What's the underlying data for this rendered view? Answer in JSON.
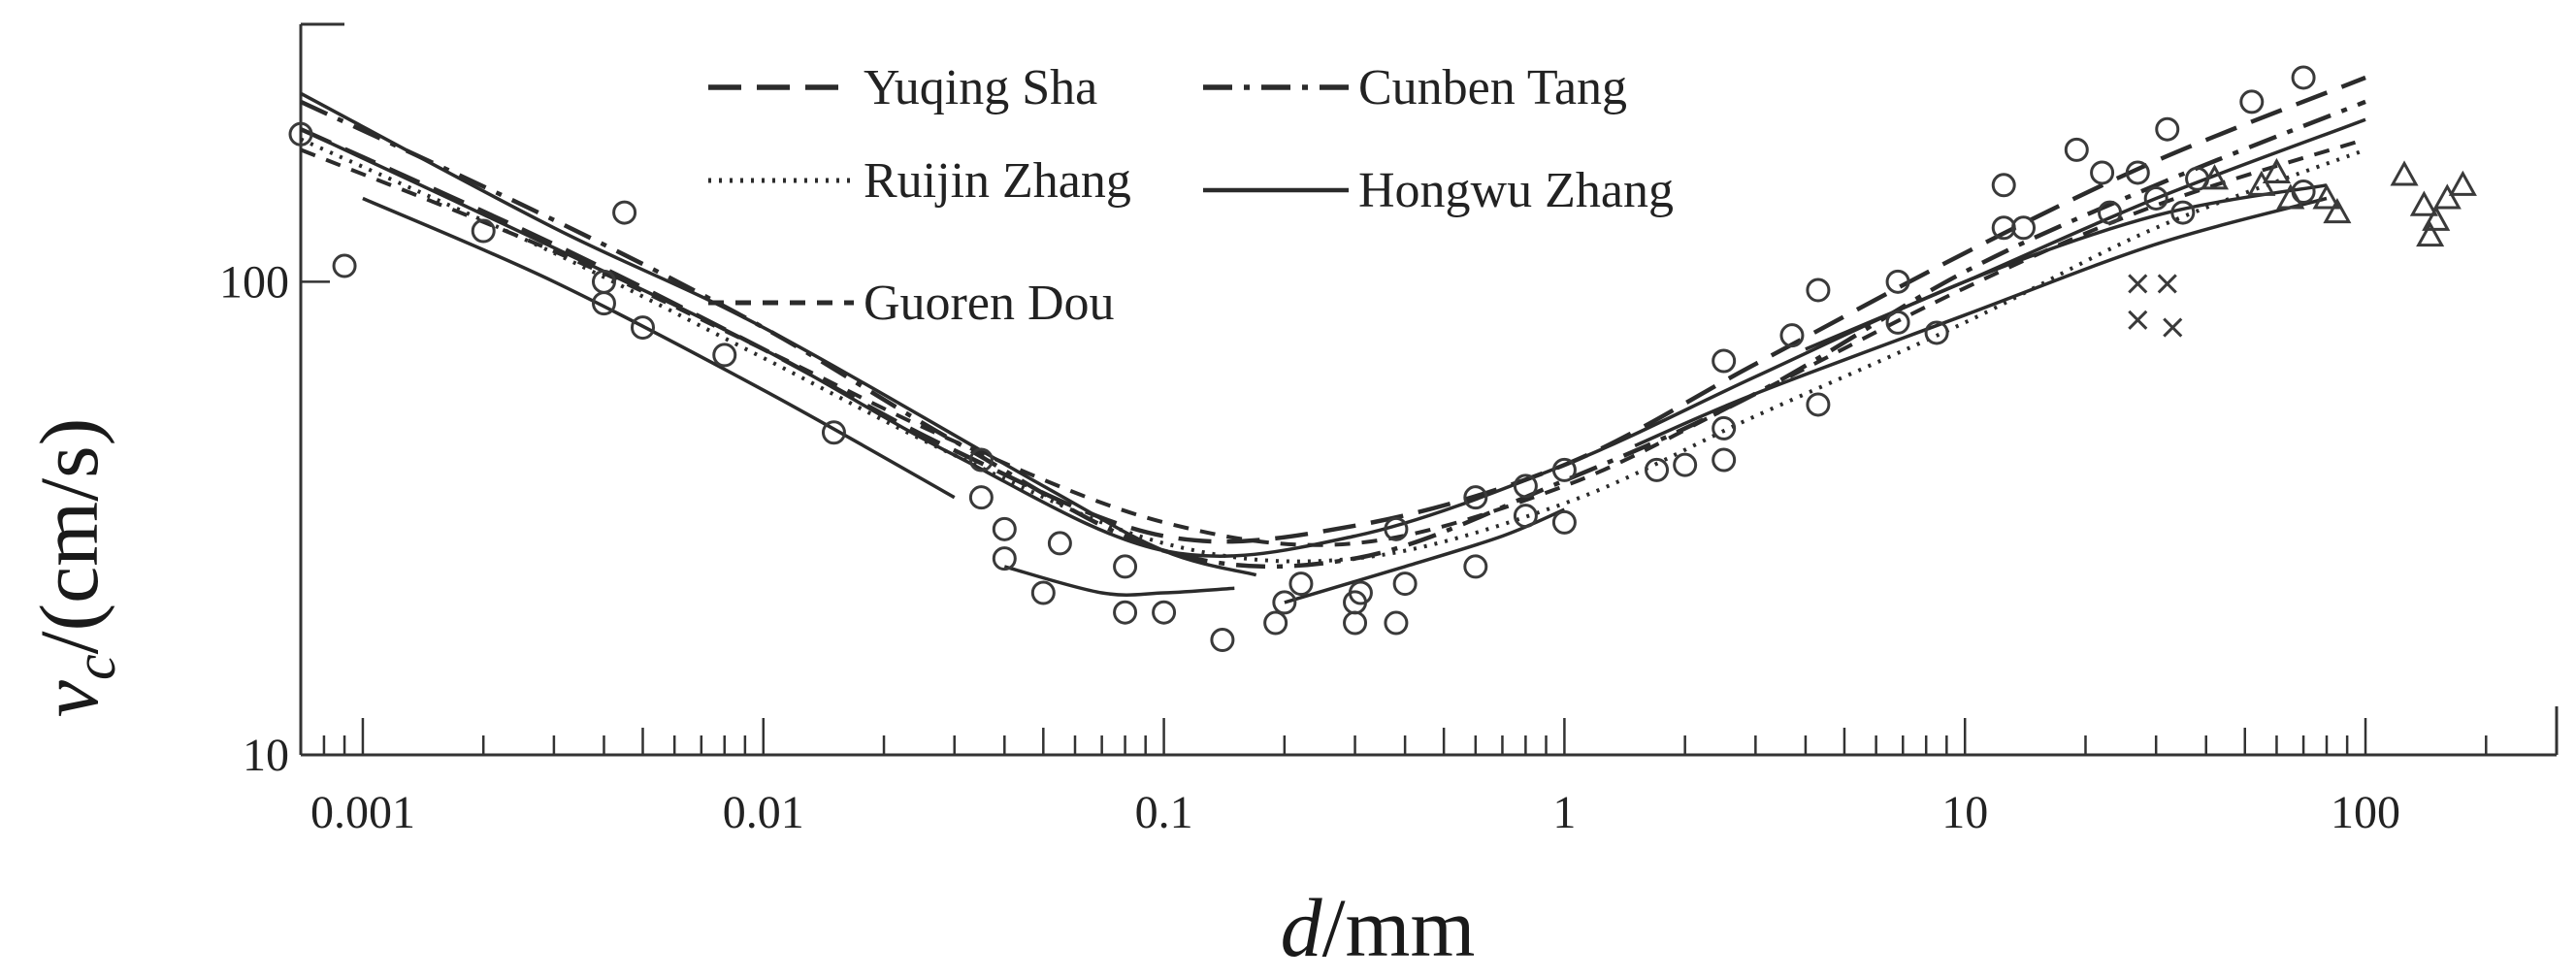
{
  "chart_data": {
    "type": "line",
    "title": "",
    "xlabel": {
      "var": "d",
      "unit": "/mm"
    },
    "ylabel": {
      "var": "v",
      "sub": "c",
      "unit": "/(cm/s)"
    },
    "x_scale": "log",
    "y_scale": "log",
    "xlim": [
      0.0007,
      300
    ],
    "ylim": [
      10,
      350
    ],
    "x_ticks": [
      {
        "value": 0.001,
        "label": "0.001"
      },
      {
        "value": 0.01,
        "label": "0.01"
      },
      {
        "value": 0.1,
        "label": "0.1"
      },
      {
        "value": 1,
        "label": "1"
      },
      {
        "value": 10,
        "label": "10"
      },
      {
        "value": 100,
        "label": "100"
      }
    ],
    "y_ticks": [
      {
        "value": 10,
        "label": "10"
      },
      {
        "value": 100,
        "label": "100"
      }
    ],
    "grid": false,
    "legend_position": "top-center",
    "series": [
      {
        "name": "Yuqing Sha",
        "style": "long-dash",
        "segments": [
          [
            [
              0.0007,
              210
            ],
            [
              0.003,
              120
            ],
            [
              0.01,
              72
            ],
            [
              0.03,
              44
            ],
            [
              0.1,
              29
            ],
            [
              0.3,
              30.5
            ],
            [
              1,
              41
            ],
            [
              3,
              67
            ],
            [
              10,
              115
            ],
            [
              30,
              180
            ],
            [
              100,
              270
            ]
          ]
        ]
      },
      {
        "name": "Cunben Tang",
        "style": "dash-dot",
        "segments": [
          [
            [
              0.0007,
              240
            ],
            [
              0.003,
              135
            ],
            [
              0.01,
              80
            ],
            [
              0.03,
              46
            ],
            [
              0.1,
              27
            ],
            [
              0.3,
              26
            ],
            [
              1,
              38
            ],
            [
              3,
              58
            ],
            [
              10,
              105
            ],
            [
              30,
              160
            ],
            [
              100,
              240
            ]
          ]
        ]
      },
      {
        "name": "Ruijin Zhang",
        "style": "dotted",
        "segments": [
          [
            [
              0.0007,
              200
            ],
            [
              0.003,
              115
            ],
            [
              0.01,
              69
            ],
            [
              0.03,
              43
            ],
            [
              0.1,
              28
            ],
            [
              0.3,
              26
            ],
            [
              1,
              34
            ],
            [
              3,
              52
            ],
            [
              10,
              82
            ],
            [
              30,
              130
            ],
            [
              100,
              190
            ]
          ]
        ]
      },
      {
        "name": "Hongwu Zhang",
        "style": "solid",
        "segments": [
          [
            [
              0.0007,
              210
            ],
            [
              0.003,
              118
            ],
            [
              0.01,
              72
            ],
            [
              0.03,
              43
            ],
            [
              0.1,
              27
            ],
            [
              0.3,
              29
            ],
            [
              1,
              41
            ],
            [
              3,
              63
            ],
            [
              10,
              100
            ],
            [
              30,
              138
            ],
            [
              80,
              160
            ]
          ],
          [
            [
              0.0007,
              250
            ],
            [
              0.003,
              130
            ],
            [
              0.01,
              80
            ],
            [
              0.05,
              37
            ],
            [
              0.1,
              27
            ],
            [
              0.17,
              24
            ]
          ],
          [
            [
              0.001,
              150
            ],
            [
              0.003,
              100
            ],
            [
              0.01,
              59
            ],
            [
              0.03,
              35
            ]
          ],
          [
            [
              0.04,
              25
            ],
            [
              0.07,
              22
            ],
            [
              0.1,
              22
            ],
            [
              0.15,
              22.5
            ]
          ],
          [
            [
              0.2,
              21
            ],
            [
              0.4,
              25
            ],
            [
              0.7,
              29
            ],
            [
              1,
              33
            ]
          ],
          [
            [
              1.5,
              45
            ],
            [
              3,
              58
            ],
            [
              10,
              85
            ],
            [
              30,
              120
            ],
            [
              80,
              150
            ]
          ],
          [
            [
              4,
              72
            ],
            [
              10,
              100
            ],
            [
              30,
              150
            ],
            [
              100,
              220
            ]
          ]
        ]
      },
      {
        "name": "Guoren Dou",
        "style": "short-dash",
        "segments": [
          [
            [
              0.0007,
              190
            ],
            [
              0.003,
              116
            ],
            [
              0.01,
              72
            ],
            [
              0.03,
              46
            ],
            [
              0.1,
              31
            ],
            [
              0.3,
              28
            ],
            [
              1,
              37
            ],
            [
              3,
              58
            ],
            [
              10,
              97
            ],
            [
              30,
              145
            ],
            [
              100,
              200
            ]
          ]
        ]
      }
    ],
    "markers": {
      "circles": [
        [
          0.0007,
          205
        ],
        [
          0.0009,
          108
        ],
        [
          0.002,
          128
        ],
        [
          0.004,
          100
        ],
        [
          0.0045,
          140
        ],
        [
          0.004,
          90
        ],
        [
          0.005,
          80
        ],
        [
          0.008,
          70
        ],
        [
          0.015,
          48
        ],
        [
          0.035,
          42
        ],
        [
          0.035,
          35
        ],
        [
          0.04,
          30
        ],
        [
          0.04,
          26
        ],
        [
          0.05,
          22
        ],
        [
          0.055,
          28
        ],
        [
          0.08,
          25
        ],
        [
          0.08,
          20
        ],
        [
          0.1,
          20
        ],
        [
          0.14,
          17.5
        ],
        [
          0.19,
          19
        ],
        [
          0.2,
          21
        ],
        [
          0.22,
          23
        ],
        [
          0.3,
          19
        ],
        [
          0.3,
          21
        ],
        [
          0.31,
          22
        ],
        [
          0.38,
          19
        ],
        [
          0.38,
          30
        ],
        [
          0.4,
          23
        ],
        [
          0.6,
          25
        ],
        [
          0.6,
          35
        ],
        [
          0.8,
          32
        ],
        [
          0.8,
          37
        ],
        [
          1,
          31
        ],
        [
          1,
          40
        ],
        [
          1.7,
          40
        ],
        [
          2,
          41
        ],
        [
          2.5,
          42
        ],
        [
          2.5,
          49
        ],
        [
          2.5,
          68
        ],
        [
          3.7,
          77
        ],
        [
          4.3,
          96
        ],
        [
          4.3,
          55
        ],
        [
          6.8,
          82
        ],
        [
          6.8,
          100
        ],
        [
          8.5,
          78
        ],
        [
          12.5,
          160
        ],
        [
          12.5,
          130
        ],
        [
          14,
          130
        ],
        [
          19,
          190
        ],
        [
          22,
          170
        ],
        [
          23,
          140
        ],
        [
          27,
          170
        ],
        [
          30,
          150
        ],
        [
          32,
          210
        ],
        [
          35,
          140
        ],
        [
          38,
          165
        ],
        [
          52,
          240
        ],
        [
          70,
          270
        ],
        [
          70,
          155
        ]
      ],
      "triangles": [
        [
          42,
          165
        ],
        [
          55,
          160
        ],
        [
          60,
          170
        ],
        [
          65,
          150
        ],
        [
          80,
          150
        ],
        [
          85,
          140
        ],
        [
          125,
          168
        ],
        [
          140,
          145
        ],
        [
          145,
          125
        ],
        [
          150,
          135
        ],
        [
          160,
          150
        ],
        [
          175,
          160
        ]
      ],
      "crosses": [
        [
          27,
          99
        ],
        [
          32,
          99
        ],
        [
          27,
          83
        ],
        [
          33,
          80
        ]
      ]
    }
  }
}
